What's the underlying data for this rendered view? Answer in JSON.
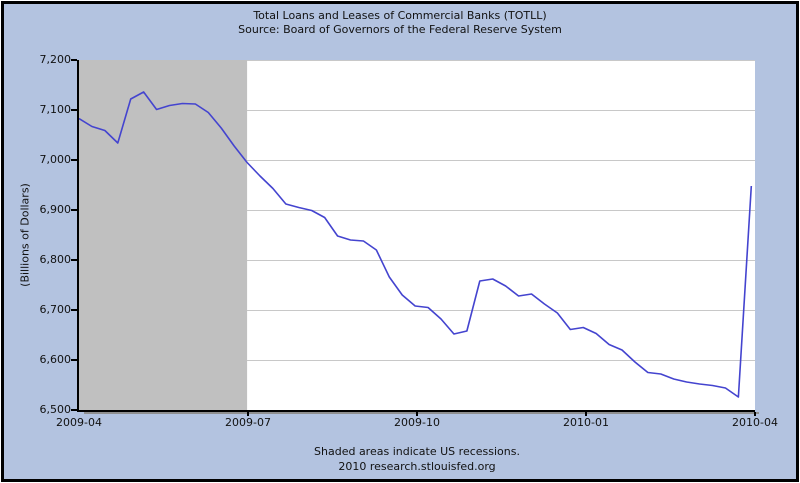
{
  "chart_data": {
    "type": "line",
    "title": "Total Loans and Leases of Commercial Banks (TOTLL)",
    "subtitle": "Source: Board of Governors of the Federal Reserve System",
    "ylabel": "(Billions of Dollars)",
    "ylim": [
      6500,
      7200
    ],
    "y_tick_labels": [
      "7,200",
      "7,100",
      "7,000",
      "6,900",
      "6,800",
      "6,700",
      "6,600",
      "6,500"
    ],
    "x_tick_labels": [
      "2009-04",
      "2009-07",
      "2009-10",
      "2010-01",
      "2010-04"
    ],
    "x_tick_positions": [
      0,
      0.25,
      0.5,
      0.75,
      1
    ],
    "grid": true,
    "legend": "none",
    "frequency": "weekly",
    "x_start": "2009-04-01",
    "x_end": "2010-03-31",
    "series": [
      {
        "name": "TOTLL",
        "values": [
          7083,
          7067,
          7059,
          7034,
          7122,
          7136,
          7101,
          7109,
          7113,
          7112,
          7095,
          7064,
          7028,
          6995,
          6968,
          6943,
          6912,
          6905,
          6899,
          6885,
          6848,
          6840,
          6838,
          6820,
          6766,
          6730,
          6708,
          6705,
          6682,
          6652,
          6658,
          6758,
          6762,
          6748,
          6728,
          6732,
          6712,
          6694,
          6661,
          6665,
          6653,
          6631,
          6620,
          6596,
          6575,
          6572,
          6562,
          6556,
          6552,
          6549,
          6544,
          6526,
          6948
        ]
      }
    ],
    "recession_bands": [
      {
        "start_frac": 0,
        "end_frac": 0.2486
      }
    ],
    "footnote": "Shaded areas indicate US recessions.",
    "attribution": "2010 research.stlouisfed.org",
    "colors": {
      "background": "#b3c3e0",
      "plot_background": "#ffffff",
      "grid": "#c8c8c8",
      "recession": "#c0c0c0",
      "line": "#4444cf",
      "axis": "#000000",
      "text": "#111111"
    }
  }
}
